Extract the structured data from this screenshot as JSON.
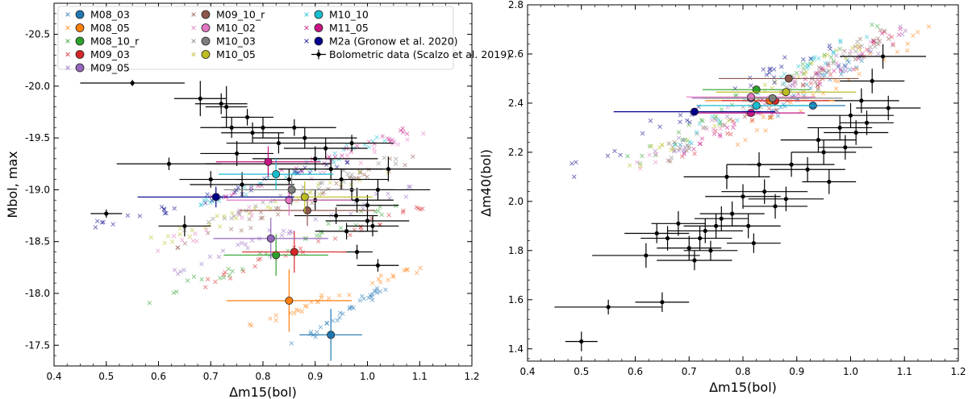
{
  "legend": [
    {
      "label": "M08_03",
      "color": "#1f77b4"
    },
    {
      "label": "M08_05",
      "color": "#ff7f0e"
    },
    {
      "label": "M08_10_r",
      "color": "#2ca02c"
    },
    {
      "label": "M09_03",
      "color": "#d62728"
    },
    {
      "label": "M09_05",
      "color": "#9467bd"
    },
    {
      "label": "M09_10_r",
      "color": "#8c564b"
    },
    {
      "label": "M10_02",
      "color": "#e377c2"
    },
    {
      "label": "M10_03",
      "color": "#7f7f7f"
    },
    {
      "label": "M10_05",
      "color": "#bcbd22"
    },
    {
      "label": "M10_10",
      "color": "#17becf"
    },
    {
      "label": "M11_05",
      "color": "#c71585"
    },
    {
      "label": "M2a (Gronow et al. 2020)",
      "color": "#00008b"
    },
    {
      "label": "Bolometric data (Scalzo et al. 2019)",
      "color": "#000000"
    }
  ],
  "chart_data": [
    {
      "type": "scatter",
      "xlabel": "Δm15(bol)",
      "ylabel": "Mbol, max",
      "xlim": [
        0.4,
        1.2
      ],
      "ylim": [
        -17.3,
        -20.8
      ],
      "inverted_y": true,
      "xticks": [
        "0.4",
        "0.5",
        "0.6",
        "0.7",
        "0.8",
        "0.9",
        "1.0",
        "1.1",
        "1.2"
      ],
      "yticks": [
        "-20.5",
        "-20.0",
        "-19.5",
        "-19.0",
        "-18.5",
        "-18.0",
        "-17.5"
      ],
      "models": [
        {
          "name": "M08_03",
          "x": 0.93,
          "y": -17.6,
          "xerr": 0.06,
          "yerr": 0.25,
          "cloud": {
            "x0": 0.86,
            "y0": -17.5,
            "x1": 1.03,
            "y1": -18.05
          }
        },
        {
          "name": "M08_05",
          "x": 0.85,
          "y": -17.93,
          "xerr": 0.12,
          "yerr": 0.3,
          "cloud": {
            "x0": 0.78,
            "y0": -17.7,
            "x1": 1.15,
            "y1": -18.35
          }
        },
        {
          "name": "M08_10_r",
          "x": 0.825,
          "y": -18.37,
          "xerr": 0.1,
          "yerr": 0.2,
          "cloud": {
            "x0": 0.57,
            "y0": -17.9,
            "x1": 1.05,
            "y1": -18.85
          }
        },
        {
          "name": "M09_03",
          "x": 0.86,
          "y": -18.4,
          "xerr": 0.1,
          "yerr": 0.2,
          "cloud": {
            "x0": 0.7,
            "y0": -18.1,
            "x1": 1.1,
            "y1": -18.85
          }
        },
        {
          "name": "M09_05",
          "x": 0.815,
          "y": -18.53,
          "xerr": 0.11,
          "yerr": 0.2,
          "cloud": {
            "x0": 0.62,
            "y0": -18.2,
            "x1": 1.1,
            "y1": -19.05
          }
        },
        {
          "name": "M09_10_r",
          "x": 0.885,
          "y": -18.8,
          "xerr": 0.13,
          "yerr": 0.15,
          "cloud": {
            "x0": 0.63,
            "y0": -18.4,
            "x1": 1.08,
            "y1": -19.3
          }
        },
        {
          "name": "M10_02",
          "x": 0.85,
          "y": -18.9,
          "xerr": 0.12,
          "yerr": 0.15,
          "cloud": {
            "x0": 0.6,
            "y0": -18.4,
            "x1": 1.1,
            "y1": -19.6
          }
        },
        {
          "name": "M10_03",
          "x": 0.855,
          "y": -19.0,
          "xerr": 0.13,
          "yerr": 0.15,
          "cloud": {
            "x0": 0.66,
            "y0": -18.6,
            "x1": 1.08,
            "y1": -19.35
          }
        },
        {
          "name": "M10_05",
          "x": 0.88,
          "y": -18.93,
          "xerr": 0.13,
          "yerr": 0.15,
          "cloud": {
            "x0": 0.6,
            "y0": -18.5,
            "x1": 1.06,
            "y1": -19.25
          }
        },
        {
          "name": "M10_10",
          "x": 0.825,
          "y": -19.15,
          "xerr": 0.11,
          "yerr": 0.15,
          "cloud": {
            "x0": 0.66,
            "y0": -18.8,
            "x1": 1.03,
            "y1": -19.5
          }
        },
        {
          "name": "M11_05",
          "x": 0.81,
          "y": -19.27,
          "xerr": 0.1,
          "yerr": 0.15,
          "cloud": {
            "x0": 0.7,
            "y0": -18.9,
            "x1": 1.1,
            "y1": -19.6
          }
        },
        {
          "name": "M2a (Gronow et al. 2020)",
          "x": 0.71,
          "y": -18.93,
          "xerr": 0.15,
          "yerr": 0.1,
          "cloud": {
            "x0": 0.45,
            "y0": -18.6,
            "x1": 0.98,
            "y1": -19.3
          }
        }
      ],
      "observations": [
        {
          "x": 0.5,
          "y": -18.77,
          "xerr": 0.03,
          "yerr": 0.04
        },
        {
          "x": 0.55,
          "y": -20.03,
          "xerr": 0.1,
          "yerr": 0.03
        },
        {
          "x": 0.62,
          "y": -19.25,
          "xerr": 0.1,
          "yerr": 0.06
        },
        {
          "x": 0.65,
          "y": -18.65,
          "xerr": 0.05,
          "yerr": 0.1
        },
        {
          "x": 0.68,
          "y": -19.88,
          "xerr": 0.05,
          "yerr": 0.17
        },
        {
          "x": 0.72,
          "y": -19.83,
          "xerr": 0.05,
          "yerr": 0.1
        },
        {
          "x": 0.73,
          "y": -19.8,
          "xerr": 0.04,
          "yerr": 0.2
        },
        {
          "x": 0.74,
          "y": -19.6,
          "xerr": 0.06,
          "yerr": 0.1
        },
        {
          "x": 0.75,
          "y": -19.35,
          "xerr": 0.07,
          "yerr": 0.12
        },
        {
          "x": 0.77,
          "y": -19.7,
          "xerr": 0.05,
          "yerr": 0.08
        },
        {
          "x": 0.78,
          "y": -19.55,
          "xerr": 0.06,
          "yerr": 0.1
        },
        {
          "x": 0.8,
          "y": -19.6,
          "xerr": 0.08,
          "yerr": 0.1
        },
        {
          "x": 0.83,
          "y": -19.45,
          "xerr": 0.1,
          "yerr": 0.1
        },
        {
          "x": 0.86,
          "y": -19.6,
          "xerr": 0.08,
          "yerr": 0.08
        },
        {
          "x": 0.88,
          "y": -19.5,
          "xerr": 0.1,
          "yerr": 0.1
        },
        {
          "x": 0.9,
          "y": -19.3,
          "xerr": 0.12,
          "yerr": 0.12
        },
        {
          "x": 0.93,
          "y": -19.2,
          "xerr": 0.1,
          "yerr": 0.1
        },
        {
          "x": 0.95,
          "y": -19.1,
          "xerr": 0.09,
          "yerr": 0.1
        },
        {
          "x": 0.97,
          "y": -19.0,
          "xerr": 0.08,
          "yerr": 0.1
        },
        {
          "x": 0.98,
          "y": -18.9,
          "xerr": 0.07,
          "yerr": 0.12
        },
        {
          "x": 1.0,
          "y": -18.85,
          "xerr": 0.06,
          "yerr": 0.1
        },
        {
          "x": 1.02,
          "y": -19.0,
          "xerr": 0.1,
          "yerr": 0.1
        },
        {
          "x": 1.0,
          "y": -18.7,
          "xerr": 0.08,
          "yerr": 0.1
        },
        {
          "x": 0.96,
          "y": -18.6,
          "xerr": 0.06,
          "yerr": 0.08
        },
        {
          "x": 1.02,
          "y": -18.27,
          "xerr": 0.04,
          "yerr": 0.06
        },
        {
          "x": 0.98,
          "y": -18.4,
          "xerr": 0.03,
          "yerr": 0.07
        },
        {
          "x": 1.04,
          "y": -19.2,
          "xerr": 0.12,
          "yerr": 0.12
        },
        {
          "x": 0.92,
          "y": -19.4,
          "xerr": 0.08,
          "yerr": 0.1
        },
        {
          "x": 0.7,
          "y": -19.1,
          "xerr": 0.06,
          "yerr": 0.08
        },
        {
          "x": 0.85,
          "y": -19.1,
          "xerr": 0.1,
          "yerr": 0.1
        },
        {
          "x": 0.9,
          "y": -18.9,
          "xerr": 0.08,
          "yerr": 0.1
        },
        {
          "x": 0.94,
          "y": -18.75,
          "xerr": 0.08,
          "yerr": 0.08
        },
        {
          "x": 1.01,
          "y": -18.65,
          "xerr": 0.05,
          "yerr": 0.1
        },
        {
          "x": 0.97,
          "y": -19.45,
          "xerr": 0.08,
          "yerr": 0.08
        },
        {
          "x": 0.81,
          "y": -19.25,
          "xerr": 0.12,
          "yerr": 0.1
        },
        {
          "x": 0.76,
          "y": -19.05,
          "xerr": 0.1,
          "yerr": 0.12
        }
      ]
    },
    {
      "type": "scatter",
      "xlabel": "Δm15(bol)",
      "ylabel": "Δm40(bol)",
      "xlim": [
        0.4,
        1.2
      ],
      "ylim": [
        1.35,
        2.8
      ],
      "xticks": [
        "0.4",
        "0.5",
        "0.6",
        "0.7",
        "0.8",
        "0.9",
        "1.0",
        "1.1",
        "1.2"
      ],
      "yticks": [
        "1.4",
        "1.6",
        "1.8",
        "2.0",
        "2.2",
        "2.4",
        "2.6",
        "2.8"
      ],
      "models": [
        {
          "name": "M08_03",
          "x": 0.93,
          "y": 2.39,
          "xerr": 0.06,
          "yerr": 0,
          "cloud": {
            "x0": 0.85,
            "y0": 2.35,
            "x1": 1.03,
            "y1": 2.6
          }
        },
        {
          "name": "M08_05",
          "x": 0.85,
          "y": 2.41,
          "xerr": 0.12,
          "yerr": 0,
          "cloud": {
            "x0": 0.78,
            "y0": 2.25,
            "x1": 1.15,
            "y1": 2.7
          }
        },
        {
          "name": "M08_10_r",
          "x": 0.825,
          "y": 2.455,
          "xerr": 0.1,
          "yerr": 0,
          "cloud": {
            "x0": 0.57,
            "y0": 2.15,
            "x1": 1.05,
            "y1": 2.7
          }
        },
        {
          "name": "M09_03",
          "x": 0.86,
          "y": 2.41,
          "xerr": 0.1,
          "yerr": 0,
          "cloud": {
            "x0": 0.7,
            "y0": 2.2,
            "x1": 1.1,
            "y1": 2.7
          }
        },
        {
          "name": "M09_05",
          "x": 0.815,
          "y": 2.42,
          "xerr": 0.11,
          "yerr": 0,
          "cloud": {
            "x0": 0.62,
            "y0": 2.15,
            "x1": 1.1,
            "y1": 2.7
          }
        },
        {
          "name": "M09_10_r",
          "x": 0.885,
          "y": 2.5,
          "xerr": 0.13,
          "yerr": 0,
          "cloud": {
            "x0": 0.63,
            "y0": 2.15,
            "x1": 1.08,
            "y1": 2.7
          }
        },
        {
          "name": "M10_02",
          "x": 0.815,
          "y": 2.425,
          "xerr": 0.12,
          "yerr": 0,
          "cloud": {
            "x0": 0.6,
            "y0": 2.15,
            "x1": 1.1,
            "y1": 2.7
          }
        },
        {
          "name": "M10_03",
          "x": 0.855,
          "y": 2.42,
          "xerr": 0.13,
          "yerr": 0,
          "cloud": {
            "x0": 0.66,
            "y0": 2.18,
            "x1": 1.08,
            "y1": 2.7
          }
        },
        {
          "name": "M10_05",
          "x": 0.88,
          "y": 2.445,
          "xerr": 0.13,
          "yerr": 0,
          "cloud": {
            "x0": 0.6,
            "y0": 2.15,
            "x1": 1.06,
            "y1": 2.7
          }
        },
        {
          "name": "M10_10",
          "x": 0.825,
          "y": 2.39,
          "xerr": 0.11,
          "yerr": 0,
          "cloud": {
            "x0": 0.66,
            "y0": 2.2,
            "x1": 1.03,
            "y1": 2.7
          }
        },
        {
          "name": "M11_05",
          "x": 0.815,
          "y": 2.36,
          "xerr": 0.1,
          "yerr": 0,
          "cloud": {
            "x0": 0.7,
            "y0": 2.2,
            "x1": 1.1,
            "y1": 2.7
          }
        },
        {
          "name": "M2a (Gronow et al. 2020)",
          "x": 0.71,
          "y": 2.365,
          "xerr": 0.15,
          "yerr": 0,
          "cloud": {
            "x0": 0.45,
            "y0": 2.1,
            "x1": 0.98,
            "y1": 2.65
          }
        }
      ],
      "observations": [
        {
          "x": 0.5,
          "y": 1.43,
          "xerr": 0.03,
          "yerr": 0.04
        },
        {
          "x": 0.55,
          "y": 1.57,
          "xerr": 0.1,
          "yerr": 0.03
        },
        {
          "x": 0.65,
          "y": 1.59,
          "xerr": 0.05,
          "yerr": 0.04
        },
        {
          "x": 0.62,
          "y": 1.78,
          "xerr": 0.1,
          "yerr": 0.05
        },
        {
          "x": 0.64,
          "y": 1.87,
          "xerr": 0.06,
          "yerr": 0.04
        },
        {
          "x": 0.66,
          "y": 1.85,
          "xerr": 0.05,
          "yerr": 0.05
        },
        {
          "x": 0.68,
          "y": 1.91,
          "xerr": 0.05,
          "yerr": 0.05
        },
        {
          "x": 0.7,
          "y": 1.81,
          "xerr": 0.06,
          "yerr": 0.05
        },
        {
          "x": 0.71,
          "y": 1.76,
          "xerr": 0.07,
          "yerr": 0.04
        },
        {
          "x": 0.72,
          "y": 1.85,
          "xerr": 0.06,
          "yerr": 0.05
        },
        {
          "x": 0.73,
          "y": 1.88,
          "xerr": 0.07,
          "yerr": 0.05
        },
        {
          "x": 0.74,
          "y": 1.8,
          "xerr": 0.05,
          "yerr": 0.04
        },
        {
          "x": 0.75,
          "y": 1.9,
          "xerr": 0.06,
          "yerr": 0.05
        },
        {
          "x": 0.76,
          "y": 1.93,
          "xerr": 0.05,
          "yerr": 0.05
        },
        {
          "x": 0.77,
          "y": 2.1,
          "xerr": 0.08,
          "yerr": 0.05
        },
        {
          "x": 0.78,
          "y": 1.95,
          "xerr": 0.06,
          "yerr": 0.05
        },
        {
          "x": 0.8,
          "y": 2.02,
          "xerr": 0.07,
          "yerr": 0.05
        },
        {
          "x": 0.81,
          "y": 1.9,
          "xerr": 0.06,
          "yerr": 0.05
        },
        {
          "x": 0.82,
          "y": 1.83,
          "xerr": 0.05,
          "yerr": 0.04
        },
        {
          "x": 0.83,
          "y": 2.15,
          "xerr": 0.06,
          "yerr": 0.05
        },
        {
          "x": 0.84,
          "y": 2.04,
          "xerr": 0.08,
          "yerr": 0.05
        },
        {
          "x": 0.86,
          "y": 1.98,
          "xerr": 0.06,
          "yerr": 0.05
        },
        {
          "x": 0.88,
          "y": 2.01,
          "xerr": 0.07,
          "yerr": 0.05
        },
        {
          "x": 0.89,
          "y": 2.15,
          "xerr": 0.08,
          "yerr": 0.05
        },
        {
          "x": 0.92,
          "y": 2.13,
          "xerr": 0.07,
          "yerr": 0.05
        },
        {
          "x": 0.94,
          "y": 2.25,
          "xerr": 0.07,
          "yerr": 0.05
        },
        {
          "x": 0.95,
          "y": 2.2,
          "xerr": 0.06,
          "yerr": 0.05
        },
        {
          "x": 0.96,
          "y": 2.08,
          "xerr": 0.05,
          "yerr": 0.05
        },
        {
          "x": 0.98,
          "y": 2.3,
          "xerr": 0.06,
          "yerr": 0.05
        },
        {
          "x": 0.99,
          "y": 2.22,
          "xerr": 0.05,
          "yerr": 0.05
        },
        {
          "x": 1.0,
          "y": 2.35,
          "xerr": 0.08,
          "yerr": 0.05
        },
        {
          "x": 1.01,
          "y": 2.28,
          "xerr": 0.06,
          "yerr": 0.05
        },
        {
          "x": 1.02,
          "y": 2.41,
          "xerr": 0.07,
          "yerr": 0.05
        },
        {
          "x": 1.03,
          "y": 2.32,
          "xerr": 0.05,
          "yerr": 0.05
        },
        {
          "x": 1.04,
          "y": 2.49,
          "xerr": 0.06,
          "yerr": 0.05
        },
        {
          "x": 1.06,
          "y": 2.59,
          "xerr": 0.08,
          "yerr": 0.05
        },
        {
          "x": 1.07,
          "y": 2.38,
          "xerr": 0.06,
          "yerr": 0.05
        }
      ]
    }
  ]
}
